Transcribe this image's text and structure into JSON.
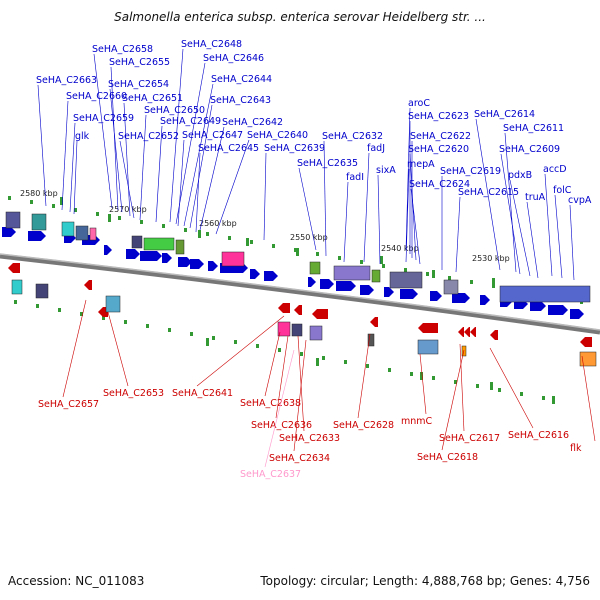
{
  "title": "Salmonella enterica subsp. enterica serovar Heidelberg str. ...",
  "footer": {
    "accession": "Accession: NC_011083",
    "summary": "Topology: circular; Length: 4,888,768 bp; Genes: 4,756"
  },
  "colors": {
    "forward": "#0000cc",
    "reverse": "#cc0000",
    "pseudo": "#ff99cc",
    "backbone": "#888888"
  },
  "ruler": [
    "2580 kbp",
    "2570 kbp",
    "2560 kbp",
    "2550 kbp",
    "2540 kbp",
    "2530 kbp"
  ],
  "top_labels": [
    "SeHA_C2658",
    "SeHA_C2648",
    "SeHA_C2655",
    "SeHA_C2646",
    "SeHA_C2663",
    "SeHA_C2654",
    "SeHA_C2644",
    "SeHA_C2660",
    "SeHA_C2651",
    "SeHA_C2643",
    "aroC",
    "SeHA_C2650",
    "SeHA_C2614",
    "SeHA_C2659",
    "SeHA_C2649",
    "SeHA_C2642",
    "SeHA_C2623",
    "SeHA_C2611",
    "glk",
    "SeHA_C2652",
    "SeHA_C2647",
    "SeHA_C2640",
    "SeHA_C2632",
    "SeHA_C2622",
    "SeHA_C2645",
    "SeHA_C2639",
    "fadJ",
    "SeHA_C2620",
    "SeHA_C2609",
    "SeHA_C2635",
    "sixA",
    "mepA",
    "accD",
    "fadI",
    "SeHA_C2624",
    "SeHA_C2619",
    "pdxB",
    "folC",
    "SeHA_C2615",
    "truA",
    "cvpA"
  ],
  "bottom_labels": [
    "SeHA_C2657",
    "SeHA_C2653",
    "SeHA_C2641",
    "SeHA_C2638",
    "SeHA_C2636",
    "SeHA_C2633",
    "SeHA_C2634",
    "SeHA_C2637",
    "SeHA_C2628",
    "mnmC",
    "SeHA_C2617",
    "SeHA_C2618",
    "SeHA_C2616",
    "flk"
  ]
}
